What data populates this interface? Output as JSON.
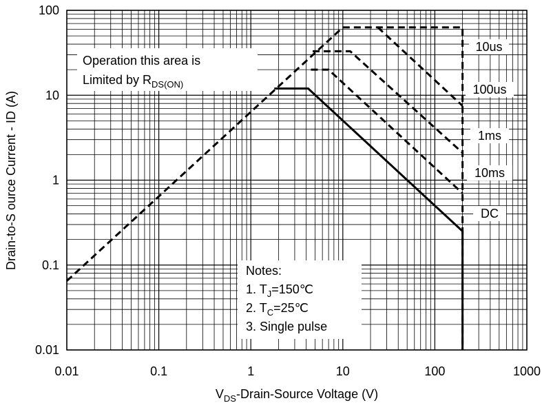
{
  "chart_data": {
    "type": "line",
    "xlabel": [
      {
        "text": "V"
      },
      {
        "sub": "DS"
      },
      {
        "text": "-Drain-Source Voltage (V)"
      }
    ],
    "ylabel": "Drain-to-S ource Current - ID (A)",
    "log_x": true,
    "log_y": true,
    "grid": true,
    "xlim": [
      0.01,
      1000
    ],
    "ylim": [
      0.01,
      100
    ],
    "xticks": [
      0.01,
      0.1,
      1,
      10,
      100,
      1000
    ],
    "yticks": [
      0.01,
      0.1,
      1,
      10,
      100
    ],
    "series": [
      {
        "name": "Operation this area is Limited by RDS(ON)",
        "color": "#000000",
        "dash": true,
        "x": [
          0.01,
          10
        ],
        "values": [
          0.065,
          63
        ]
      },
      {
        "name": "10us",
        "color": "#000000",
        "dash": true,
        "x": [
          10,
          200,
          200
        ],
        "values": [
          63,
          63,
          0.01
        ]
      },
      {
        "name": "100us",
        "color": "#000000",
        "dash": true,
        "x": [
          24,
          200
        ],
        "values": [
          63,
          7.5
        ]
      },
      {
        "name": "1ms",
        "color": "#000000",
        "dash": true,
        "x": [
          4.7,
          12,
          200
        ],
        "values": [
          33,
          33,
          2.1
        ]
      },
      {
        "name": "10ms",
        "color": "#000000",
        "dash": true,
        "x": [
          4.5,
          7,
          200
        ],
        "values": [
          20,
          20,
          0.7
        ]
      },
      {
        "name": "DC",
        "color": "#000000",
        "dash": false,
        "x": [
          1.8,
          4.2,
          200,
          200
        ],
        "values": [
          12,
          12,
          0.25,
          0.01
        ]
      }
    ],
    "annotations": [
      [
        [
          {
            "text": "Operation this area is"
          }
        ],
        [
          {
            "text": "Limited  by R"
          },
          {
            "sub": "DS(ON)"
          }
        ]
      ],
      [
        [
          {
            "text": "Notes:"
          }
        ],
        [
          {
            "text": "1. T"
          },
          {
            "sub": "J"
          },
          {
            "text": "=150℃"
          }
        ],
        [
          {
            "text": "2. T"
          },
          {
            "sub": "C"
          },
          {
            "text": "=25℃"
          }
        ],
        [
          {
            "text": "3. Single pulse"
          }
        ]
      ]
    ]
  }
}
